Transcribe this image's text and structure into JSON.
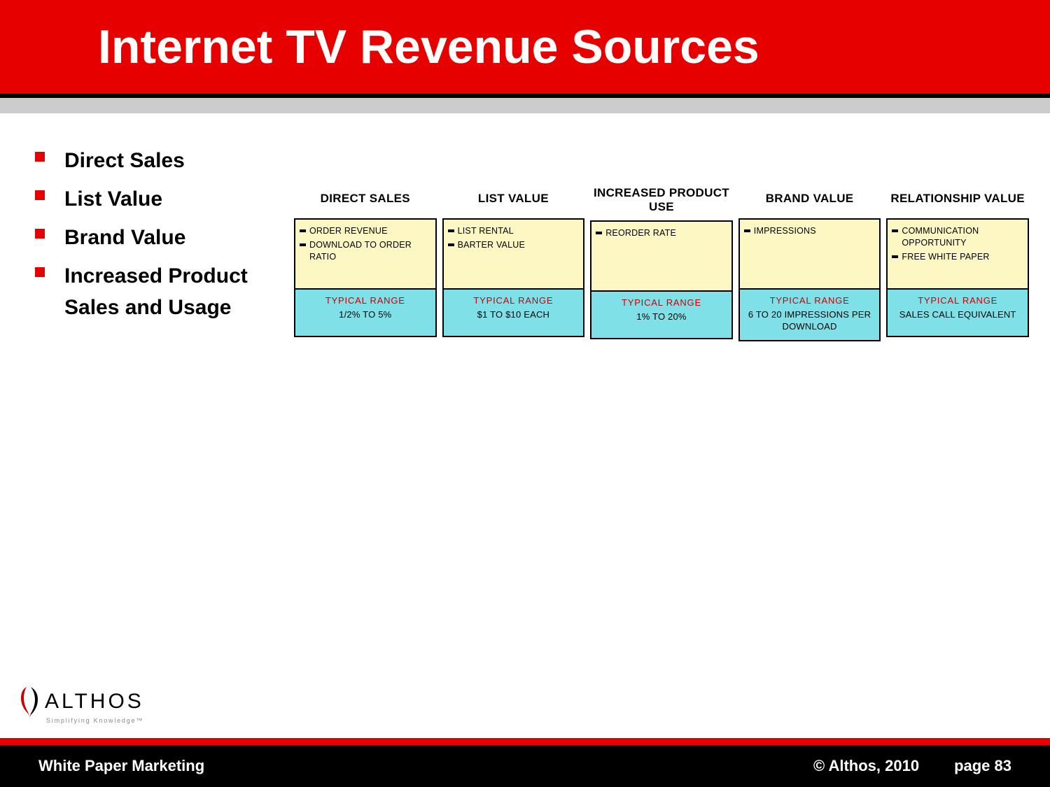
{
  "title": "Internet TV Revenue Sources",
  "bullets": [
    "Direct Sales",
    "List Value",
    "Brand Value",
    "Increased Product Sales and Usage"
  ],
  "columns": [
    {
      "header": "DIRECT SALES",
      "items": [
        "ORDER REVENUE",
        "DOWNLOAD TO ORDER RATIO"
      ],
      "range_label": "TYPICAL RANGE",
      "range_value": "1/2% TO 5%"
    },
    {
      "header": "LIST VALUE",
      "items": [
        "LIST RENTAL",
        "BARTER VALUE"
      ],
      "range_label": "TYPICAL RANGE",
      "range_value": "$1 TO $10 EACH"
    },
    {
      "header": "INCREASED PRODUCT USE",
      "items": [
        "REORDER RATE"
      ],
      "range_label": "TYPICAL RANGE",
      "range_value": "1% TO 20%"
    },
    {
      "header": "BRAND VALUE",
      "items": [
        "IMPRESSIONS"
      ],
      "range_label": "TYPICAL RANGE",
      "range_value": "6 TO 20 IMPRESSIONS PER DOWNLOAD"
    },
    {
      "header": "RELATIONSHIP VALUE",
      "items": [
        "COMMUNICATION OPPORTUNITY",
        "FREE WHITE PAPER"
      ],
      "range_label": "TYPICAL RANGE",
      "range_value": "SALES CALL EQUIVALENT"
    }
  ],
  "logo": {
    "name": "ALTHOS",
    "tagline": "Simplifying Knowledge™"
  },
  "footer": {
    "left": "White Paper Marketing",
    "copyright": "© Althos,  2010",
    "page": "page 83"
  },
  "colors": {
    "header_bg": "#e60000",
    "cell_top_bg": "#fdf7c4",
    "cell_bottom_bg": "#7fe0e8",
    "range_label_color": "#cc0000"
  }
}
